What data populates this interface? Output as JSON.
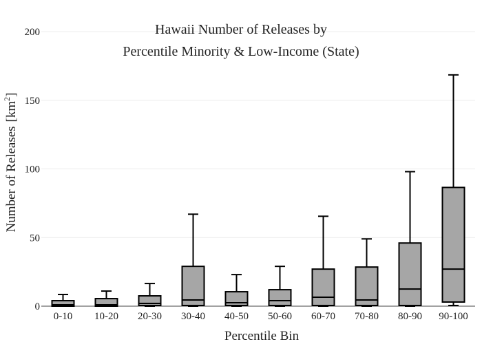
{
  "chart_data": {
    "type": "box",
    "title_lines": [
      "Hawaii Number of Releases by",
      "Percentile Minority & Low-Income (State)"
    ],
    "xlabel": "Percentile Bin",
    "ylabel_main": "Number of Releases",
    "ylabel_unit_prefix": "[km",
    "ylabel_unit_sup": "2",
    "ylabel_unit_suffix": "]",
    "ylim": [
      0,
      200
    ],
    "yticks": [
      0,
      50,
      100,
      150,
      200
    ],
    "grid": true,
    "colors": {
      "box_fill": "#a6a6a6",
      "stroke": "#000000",
      "grid": "#ececec"
    },
    "categories": [
      "0-10",
      "10-20",
      "20-30",
      "30-40",
      "40-50",
      "50-60",
      "60-70",
      "70-80",
      "80-90",
      "90-100"
    ],
    "boxes": [
      {
        "min": 0,
        "q1": 0,
        "median": 1,
        "q3": 4,
        "max": 8.5
      },
      {
        "min": 0,
        "q1": 0,
        "median": 1,
        "q3": 5.5,
        "max": 11
      },
      {
        "min": 0,
        "q1": 0.5,
        "median": 2,
        "q3": 7.5,
        "max": 16.5
      },
      {
        "min": 0,
        "q1": 0.5,
        "median": 4.5,
        "q3": 29,
        "max": 67
      },
      {
        "min": 0,
        "q1": 0.5,
        "median": 2.5,
        "q3": 10.5,
        "max": 23
      },
      {
        "min": 0,
        "q1": 0.5,
        "median": 4,
        "q3": 12,
        "max": 29
      },
      {
        "min": 0,
        "q1": 0.5,
        "median": 6.5,
        "q3": 27,
        "max": 65.5
      },
      {
        "min": 0,
        "q1": 0.5,
        "median": 4.5,
        "q3": 28.5,
        "max": 49
      },
      {
        "min": 0,
        "q1": 0.5,
        "median": 12.5,
        "q3": 46,
        "max": 98
      },
      {
        "min": 0.5,
        "q1": 3,
        "median": 27,
        "q3": 86.5,
        "max": 168.5
      }
    ]
  }
}
